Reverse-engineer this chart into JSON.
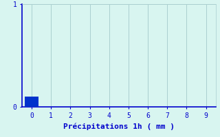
{
  "title": "",
  "xlabel": "Précipitations 1h ( mm )",
  "ylabel": "",
  "bar_value": 0.1,
  "bar_color": "#0033cc",
  "bar_width": 0.7,
  "xlim": [
    -0.5,
    9.5
  ],
  "ylim": [
    0,
    1.0
  ],
  "yticks": [
    0,
    1
  ],
  "xticks": [
    0,
    1,
    2,
    3,
    4,
    5,
    6,
    7,
    8,
    9
  ],
  "background_color": "#d8f5f0",
  "grid_color": "#aacfcf",
  "axis_color": "#0000cc",
  "tick_color": "#0000cc",
  "label_color": "#0000cc",
  "xlabel_fontsize": 8
}
